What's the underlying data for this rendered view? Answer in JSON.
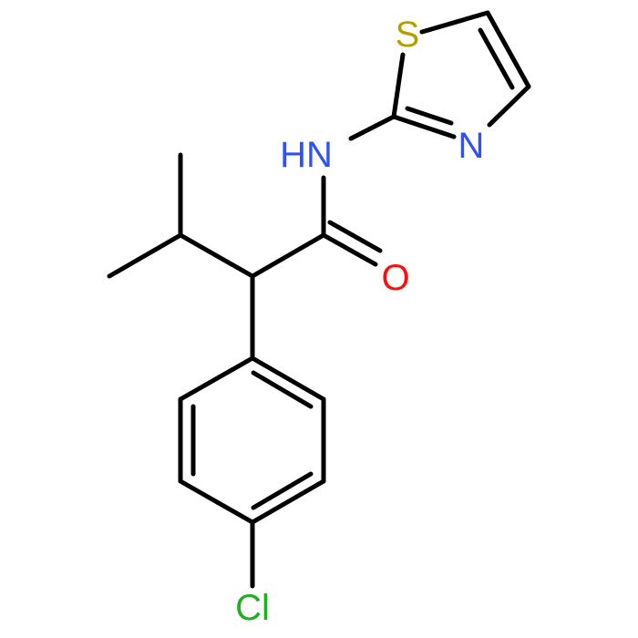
{
  "atoms": {
    "sulfur": "S",
    "thiazole_nitrogen": "N",
    "amide_nitrogen": "HN",
    "oxygen": "O",
    "chlorine": "Cl"
  }
}
